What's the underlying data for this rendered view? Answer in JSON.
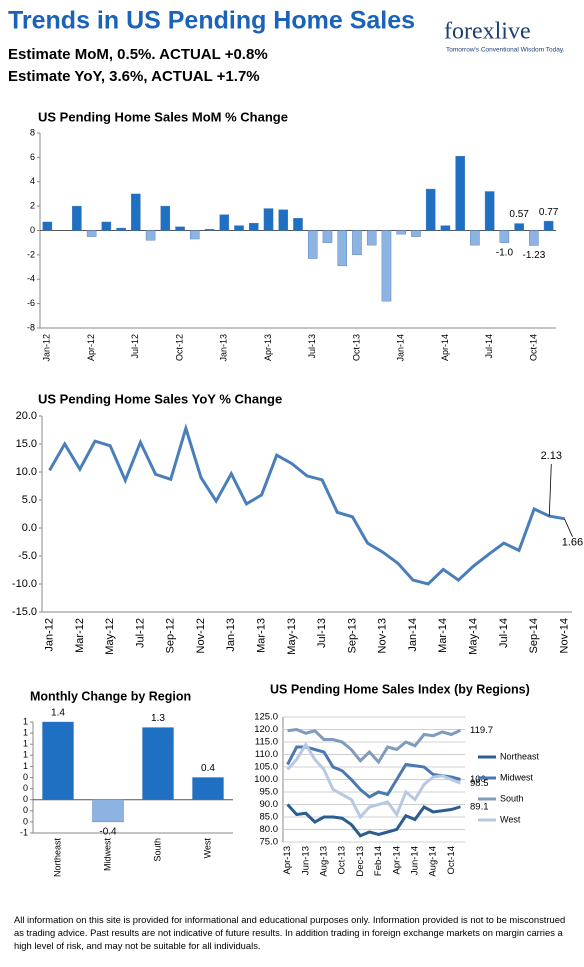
{
  "header": {
    "title": "Trends in US Pending Home Sales",
    "line1": "Estimate MoM, 0.5%. ACTUAL +0.8%",
    "line2": "Estimate YoY, 3.6%, ACTUAL +1.7%",
    "logo": "forexlive",
    "tagline": "Tomorrow's Conventional Wisdom Today."
  },
  "chart_data": [
    {
      "type": "bar",
      "title": "US Pending Home Sales MoM % Change",
      "categories": [
        "Jan-12",
        null,
        null,
        "Apr-12",
        null,
        null,
        "Jul-12",
        null,
        null,
        "Oct-12",
        null,
        null,
        "Jan-13",
        null,
        null,
        "Apr-13",
        null,
        null,
        "Jul-13",
        null,
        null,
        "Oct-13",
        null,
        null,
        "Jan-14",
        null,
        null,
        "Apr-14",
        null,
        null,
        "Jul-14",
        null,
        null,
        "Oct-14",
        null
      ],
      "values": [
        0.7,
        0,
        2.0,
        -0.5,
        0.7,
        0.2,
        3.0,
        -0.8,
        2.0,
        0.3,
        -0.7,
        0.1,
        1.3,
        0.4,
        0.6,
        1.8,
        1.7,
        1.0,
        -2.3,
        -1.0,
        -2.9,
        -2.0,
        -1.2,
        -5.8,
        -0.3,
        -0.5,
        3.4,
        0.4,
        6.1,
        -1.2,
        3.2,
        -1.0,
        0.57,
        -1.23,
        0.77
      ],
      "value_labels": [
        null,
        null,
        null,
        null,
        null,
        null,
        null,
        null,
        null,
        null,
        null,
        null,
        null,
        null,
        null,
        null,
        null,
        null,
        null,
        null,
        null,
        null,
        null,
        null,
        null,
        null,
        null,
        null,
        null,
        null,
        null,
        "-1.0",
        "0.57",
        "-1.23",
        "0.77"
      ],
      "color": "#1f6fc3",
      "negative_color": "#8db3e2",
      "ylim": [
        -8,
        8
      ],
      "yticks": [
        -8,
        -6,
        -4,
        -2,
        0,
        2,
        4,
        6,
        8
      ],
      "grid": false
    },
    {
      "type": "line",
      "title": "US Pending Home Sales YoY % Change",
      "categories": [
        "Jan-12",
        null,
        "Mar-12",
        null,
        "May-12",
        null,
        "Jul-12",
        null,
        "Sep-12",
        null,
        "Nov-12",
        null,
        "Jan-13",
        null,
        "Mar-13",
        null,
        "May-13",
        null,
        "Jul-13",
        null,
        "Sep-13",
        null,
        "Nov-13",
        null,
        "Jan-14",
        null,
        "Mar-14",
        null,
        "May-14",
        null,
        "Jul-14",
        null,
        "Sep-14",
        null,
        "Nov-14"
      ],
      "values": [
        10.3,
        15.0,
        10.5,
        15.5,
        14.7,
        8.5,
        15.3,
        9.6,
        8.7,
        17.8,
        9.0,
        4.8,
        9.7,
        4.3,
        5.9,
        13.0,
        11.5,
        9.3,
        8.6,
        2.8,
        2.0,
        -2.7,
        -4.3,
        -6.3,
        -9.3,
        -10.0,
        -7.4,
        -9.3,
        -6.8,
        -4.7,
        -2.7,
        -4.0,
        3.4,
        2.13,
        1.66
      ],
      "value_labels": [
        null,
        null,
        null,
        null,
        null,
        null,
        null,
        null,
        null,
        null,
        null,
        null,
        null,
        null,
        null,
        null,
        null,
        null,
        null,
        null,
        null,
        null,
        null,
        null,
        null,
        null,
        null,
        null,
        null,
        null,
        null,
        null,
        null,
        "2.13",
        "1.66"
      ],
      "color": "#4a7ebb",
      "ylim": [
        -15,
        20
      ],
      "yticks": [
        {
          "value": -15,
          "label": "-15.0"
        },
        {
          "value": -10,
          "label": "-10.0"
        },
        {
          "value": -5,
          "label": "-5.0"
        },
        {
          "value": 0,
          "label": "0.0"
        },
        {
          "value": 5,
          "label": "5.0"
        },
        {
          "value": 10,
          "label": "10.0"
        },
        {
          "value": 15,
          "label": "15.0"
        },
        {
          "value": 20,
          "label": "20.0"
        }
      ],
      "grid": false
    },
    {
      "type": "bar",
      "title": "Monthly Change by Region",
      "categories": [
        "Northeast",
        "Midwest",
        "South",
        "West"
      ],
      "values": [
        1.4,
        -0.4,
        1.3,
        0.4
      ],
      "color": "#1f6fc3",
      "negative_color": "#8db3e2",
      "ylim": [
        -0.6,
        1.4
      ],
      "yticks": [
        {
          "value": -0.6,
          "label": "-1"
        },
        {
          "value": -0.4,
          "label": "0"
        },
        {
          "value": -0.2,
          "label": "0"
        },
        {
          "value": 0,
          "label": "0"
        },
        {
          "value": 0.2,
          "label": "0"
        },
        {
          "value": 0.4,
          "label": "0"
        },
        {
          "value": 0.6,
          "label": "1"
        },
        {
          "value": 0.8,
          "label": "1"
        },
        {
          "value": 1.0,
          "label": "1"
        },
        {
          "value": 1.2,
          "label": "1"
        },
        {
          "value": 1.4,
          "label": "1"
        }
      ],
      "grid": false
    },
    {
      "type": "line",
      "title": "US Pending Home Sales Index (by Regions)",
      "categories": [
        "Apr-13",
        null,
        "Jun-13",
        null,
        "Aug-13",
        null,
        "Oct-13",
        null,
        "Dec-13",
        null,
        "Feb-14",
        null,
        "Apr-14",
        null,
        "Jun-14",
        null,
        "Aug-14",
        null,
        "Oct-14",
        null
      ],
      "series": [
        {
          "name": "Northeast",
          "color": "#2c5d8f",
          "values": [
            90,
            86,
            86.5,
            83,
            85,
            85,
            84.5,
            82,
            77.5,
            79,
            78,
            79,
            80,
            85.5,
            84,
            89,
            87,
            87.5,
            88,
            89.1
          ],
          "value_labels": [
            null,
            null,
            null,
            null,
            null,
            null,
            null,
            null,
            null,
            null,
            null,
            null,
            null,
            null,
            null,
            null,
            null,
            null,
            null,
            "89.1"
          ]
        },
        {
          "name": "Midwest",
          "color": "#4a78b0",
          "values": [
            106,
            113,
            113,
            112,
            111,
            105,
            103.5,
            100,
            96,
            93,
            95,
            94,
            100,
            106,
            105.5,
            105,
            102,
            101.5,
            101,
            100
          ],
          "value_labels": [
            null,
            null,
            null,
            null,
            null,
            null,
            null,
            null,
            null,
            null,
            null,
            null,
            null,
            null,
            null,
            null,
            null,
            null,
            null,
            "100"
          ]
        },
        {
          "name": "South",
          "color": "#7f9bbd",
          "values": [
            119.5,
            120,
            118.5,
            119.5,
            116,
            116,
            115,
            112,
            107.5,
            111,
            107,
            113,
            112,
            115,
            113.5,
            118,
            117.5,
            119,
            118,
            119.7
          ],
          "value_labels": [
            null,
            null,
            null,
            null,
            null,
            null,
            null,
            null,
            null,
            null,
            null,
            null,
            null,
            null,
            null,
            null,
            null,
            null,
            null,
            "119.7"
          ]
        },
        {
          "name": "West",
          "color": "#b7c9e2",
          "values": [
            104,
            108,
            114,
            108,
            104,
            96,
            94,
            92,
            85,
            89,
            90,
            91,
            86,
            95,
            92,
            98,
            101,
            101.5,
            100,
            98.5
          ],
          "value_labels": [
            null,
            null,
            null,
            null,
            null,
            null,
            null,
            null,
            null,
            null,
            null,
            null,
            null,
            null,
            null,
            null,
            null,
            null,
            null,
            "98.5"
          ]
        }
      ],
      "ylim": [
        75,
        125
      ],
      "yticks": [
        {
          "value": 75,
          "label": "75.0"
        },
        {
          "value": 80,
          "label": "80.0"
        },
        {
          "value": 85,
          "label": "85.0"
        },
        {
          "value": 90,
          "label": "90.0"
        },
        {
          "value": 95,
          "label": "95.0"
        },
        {
          "value": 100,
          "label": "100.0"
        },
        {
          "value": 105,
          "label": "105.0"
        },
        {
          "value": 110,
          "label": "110.0"
        },
        {
          "value": 115,
          "label": "115.0"
        },
        {
          "value": 120,
          "label": "120.0"
        },
        {
          "value": 125,
          "label": "125.0"
        }
      ],
      "grid": true,
      "legend": "right"
    }
  ],
  "footer": "All information on this site is provided for informational and educational purposes only. Information provided is not to be misconstrued as trading advice.  Past results are not indicative of future results.  In addition trading in foreign exchange markets on margin carries a high level of risk, and may not be suitable for all individuals."
}
